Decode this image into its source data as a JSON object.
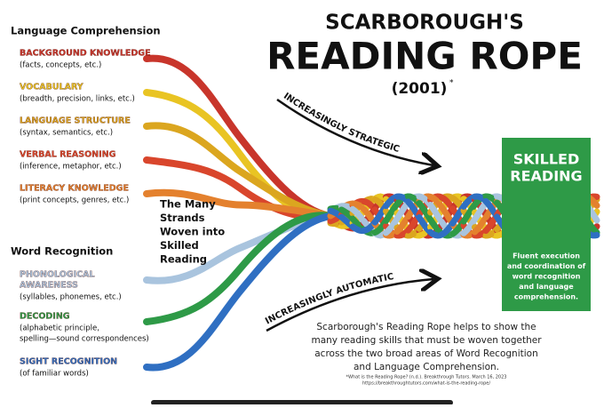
{
  "title": {
    "line1": "SCARBOROUGH'S",
    "line2": "READING ROPE",
    "year": "(2001)",
    "mark": "*"
  },
  "groups": [
    {
      "heading": "Language Comprehension",
      "strands": [
        {
          "label": [
            "BACKGROUND KNOWLEDGE"
          ],
          "detail": [
            "(facts, concepts, etc.)"
          ],
          "color": "#c8352b"
        },
        {
          "label": [
            "VOCABULARY"
          ],
          "detail": [
            "(breadth, precision, links, etc.)"
          ],
          "color": "#e9c423"
        },
        {
          "label": [
            "LANGUAGE STRUCTURE"
          ],
          "detail": [
            "(syntax, semantics, etc.)"
          ],
          "color": "#dba61f"
        },
        {
          "label": [
            "VERBAL REASONING"
          ],
          "detail": [
            "(inference, metaphor, etc.)"
          ],
          "color": "#d9462c"
        },
        {
          "label": [
            "LITERACY KNOWLEDGE"
          ],
          "detail": [
            "(print concepts, genres, etc.)"
          ],
          "color": "#e4812e"
        }
      ]
    },
    {
      "heading": "Word Recognition",
      "strands": [
        {
          "label": [
            "PHONOLOGICAL",
            "AWARENESS"
          ],
          "detail": [
            "(syllables, phonemes, etc.)"
          ],
          "color": "#a9c4de"
        },
        {
          "label": [
            "DECODING"
          ],
          "detail": [
            "(alphabetic principle,",
            "spelling—sound correspondences)"
          ],
          "color": "#2e9a47"
        },
        {
          "label": [
            "SIGHT RECOGNITION"
          ],
          "detail": [
            "(of familiar words)"
          ],
          "color": "#2f6fc2"
        }
      ]
    }
  ],
  "strands_note": [
    "The Many",
    "Strands",
    "Woven into",
    "Skilled",
    "Reading"
  ],
  "arrows": {
    "upper": "INCREASINGLY STRATEGIC",
    "lower": "INCREASINGLY AUTOMATIC"
  },
  "result": {
    "title": [
      "SKILLED",
      "READING"
    ],
    "text": [
      "Fluent execution",
      "and coordination of",
      "word recognition",
      "and language",
      "comprehension."
    ]
  },
  "caption": [
    "Scarborough's Reading Rope helps to show the",
    "many reading skills that must be woven together",
    "across the two broad areas of Word Recognition",
    "and Language Comprehension."
  ],
  "footnote": [
    "*What is the Reading Rope? (n.d.). Breakthrough Tutors. March 16, 2023",
    "https://breakthroughtutors.com/what-is-the-reading-rope/"
  ]
}
